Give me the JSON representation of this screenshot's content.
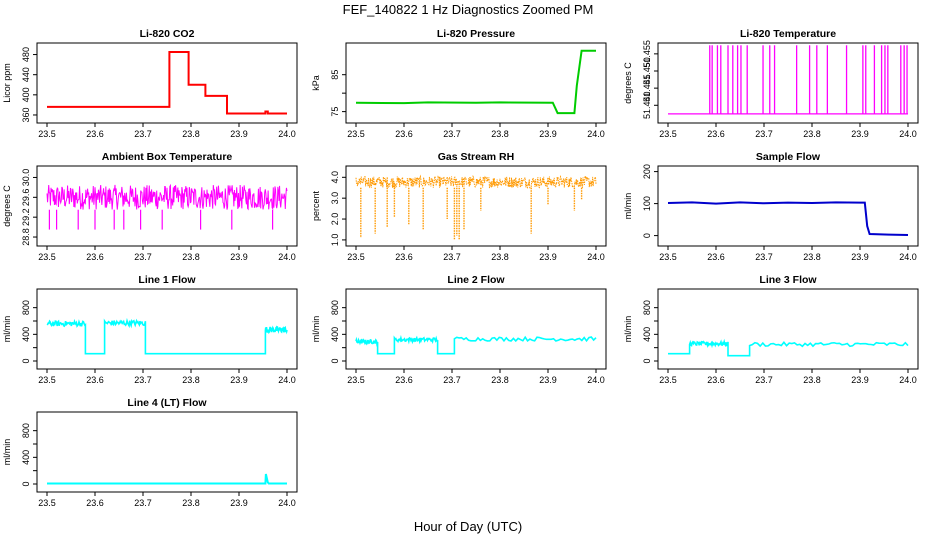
{
  "figure": {
    "title": "FEF_140822  1 Hz Diagnostics Zoomed PM",
    "xlabel": "Hour of Day (UTC)"
  },
  "chart_data": [
    {
      "type": "line",
      "title": "Li-820 CO2",
      "ylabel": "Licor ppm",
      "xlabel": "",
      "xlim": [
        23.5,
        24.0
      ],
      "ylim": [
        352,
        495
      ],
      "x_ticks": [
        "23.5",
        "23.6",
        "23.7",
        "23.8",
        "23.9",
        "24.0"
      ],
      "y_ticks": [
        360,
        400,
        440,
        480
      ],
      "y_tick_labels": [
        "360",
        "400",
        "440",
        "480"
      ],
      "color": "#ff0000",
      "series": [
        {
          "x": [
            23.5,
            23.755,
            23.755,
            23.795,
            23.795,
            23.83,
            23.83,
            23.875,
            23.875,
            23.955,
            23.955,
            23.96,
            23.96,
            24.0
          ],
          "y": [
            376,
            376,
            485,
            485,
            420,
            420,
            398,
            398,
            363,
            363,
            367,
            367,
            363,
            363
          ]
        }
      ]
    },
    {
      "type": "line",
      "title": "Li-820 Pressure",
      "ylabel": "kPa",
      "xlabel": "",
      "xlim": [
        23.5,
        24.0
      ],
      "ylim": [
        73,
        92.5
      ],
      "x_ticks": [
        "23.5",
        "23.6",
        "23.7",
        "23.8",
        "23.9",
        "24.0"
      ],
      "y_ticks": [
        75,
        80,
        85
      ],
      "y_tick_labels": [
        "75",
        "",
        "85"
      ],
      "color": "#00cc00",
      "series": [
        {
          "x": [
            23.5,
            23.6,
            23.65,
            23.75,
            23.8,
            23.91,
            23.92,
            23.955,
            23.96,
            23.97,
            24.0
          ],
          "y": [
            77.4,
            77.3,
            77.5,
            77.4,
            77.5,
            77.4,
            74.6,
            74.6,
            82,
            91.5,
            91.5
          ]
        }
      ]
    },
    {
      "type": "line",
      "title": "Li-820 Temperature",
      "ylabel": "degrees C",
      "xlabel": "",
      "xlim": [
        23.5,
        24.0
      ],
      "ylim": [
        51.436,
        51.457
      ],
      "x_ticks": [
        "23.5",
        "23.6",
        "23.7",
        "23.8",
        "23.9",
        "24.0"
      ],
      "y_ticks": [
        51.44,
        51.445,
        51.45,
        51.455
      ],
      "y_tick_labels": [
        "51.440",
        "51.445",
        "51.450",
        "51.455"
      ],
      "color": "#ff00ff",
      "baseline": 51.4375,
      "spikes_x": [
        23.587,
        23.592,
        23.603,
        23.61,
        23.625,
        23.635,
        23.645,
        23.652,
        23.665,
        23.698,
        23.712,
        23.722,
        23.768,
        23.795,
        23.81,
        23.832,
        23.872,
        23.906,
        23.912,
        23.93,
        23.945,
        23.952,
        23.958,
        23.985,
        23.992,
        23.998
      ],
      "spike_top": 51.4575
    },
    {
      "type": "line",
      "title": "Ambient Box Temperature",
      "ylabel": "degrees C",
      "xlabel": "",
      "xlim": [
        23.5,
        24.0
      ],
      "ylim": [
        28.7,
        30.15
      ],
      "x_ticks": [
        "23.5",
        "23.6",
        "23.7",
        "23.8",
        "23.9",
        "24.0"
      ],
      "y_ticks": [
        28.8,
        29.2,
        29.6,
        30.0
      ],
      "y_tick_labels": [
        "28.8",
        "29.2",
        "29.6",
        "30.0"
      ],
      "color": "#ff00ff",
      "noise_band": [
        29.35,
        29.85
      ],
      "dips_x": [
        23.505,
        23.52,
        23.565,
        23.6,
        23.64,
        23.66,
        23.695,
        23.74,
        23.82,
        23.885,
        23.97
      ],
      "dip_low": 28.95
    },
    {
      "type": "scatter",
      "title": "Gas Stream RH",
      "ylabel": "percent",
      "xlabel": "",
      "xlim": [
        23.5,
        24.0
      ],
      "ylim": [
        0.9,
        4.35
      ],
      "x_ticks": [
        "23.5",
        "23.6",
        "23.7",
        "23.8",
        "23.9",
        "24.0"
      ],
      "y_ticks": [
        1.0,
        2.0,
        3.0,
        4.0
      ],
      "y_tick_labels": [
        "1.0",
        "2.0",
        "3.0",
        "4.0"
      ],
      "color": "#ff9900",
      "noise_band": [
        3.5,
        4.05
      ],
      "dips": [
        [
          23.51,
          1.1
        ],
        [
          23.54,
          1.3
        ],
        [
          23.565,
          1.6
        ],
        [
          23.58,
          2.1
        ],
        [
          23.61,
          1.7
        ],
        [
          23.64,
          1.5
        ],
        [
          23.69,
          2.0
        ],
        [
          23.705,
          1.0
        ],
        [
          23.71,
          1.2
        ],
        [
          23.715,
          1.0
        ],
        [
          23.725,
          1.5
        ],
        [
          23.76,
          2.4
        ],
        [
          23.865,
          1.3
        ],
        [
          23.9,
          2.7
        ],
        [
          23.955,
          2.4
        ],
        [
          23.97,
          2.9
        ]
      ]
    },
    {
      "type": "line",
      "title": "Sample Flow",
      "ylabel": "ml/min",
      "xlabel": "",
      "xlim": [
        23.5,
        24.0
      ],
      "ylim": [
        -20,
        205
      ],
      "x_ticks": [
        "23.5",
        "23.6",
        "23.7",
        "23.8",
        "23.9",
        "24.0"
      ],
      "y_ticks": [
        0,
        100,
        200
      ],
      "y_tick_labels": [
        "0",
        "100",
        "200"
      ],
      "color": "#0000cc",
      "series": [
        {
          "x": [
            23.5,
            23.55,
            23.6,
            23.65,
            23.7,
            23.75,
            23.8,
            23.85,
            23.9,
            23.91,
            23.915,
            23.92,
            23.96,
            24.0
          ],
          "y": [
            102,
            104,
            100,
            104,
            101,
            103,
            102,
            104,
            103,
            103,
            30,
            5,
            3,
            2
          ]
        }
      ]
    },
    {
      "type": "line",
      "title": "Line 1 Flow",
      "ylabel": "ml/min",
      "xlabel": "",
      "xlim": [
        23.5,
        24.0
      ],
      "ylim": [
        -60,
        1020
      ],
      "x_ticks": [
        "23.5",
        "23.6",
        "23.7",
        "23.8",
        "23.9",
        "24.0"
      ],
      "y_ticks": [
        0,
        200,
        400,
        600,
        800
      ],
      "y_tick_labels": [
        "0",
        "",
        "400",
        "",
        "800"
      ],
      "color": "#00ffff",
      "segments": [
        [
          23.5,
          23.58,
          560,
          80
        ],
        [
          23.58,
          23.62,
          110,
          0
        ],
        [
          23.62,
          23.705,
          570,
          80
        ],
        [
          23.705,
          23.955,
          110,
          0
        ],
        [
          23.955,
          24.0,
          470,
          90
        ]
      ]
    },
    {
      "type": "line",
      "title": "Line 2 Flow",
      "ylabel": "ml/min",
      "xlabel": "",
      "xlim": [
        23.5,
        24.0
      ],
      "ylim": [
        -60,
        1020
      ],
      "x_ticks": [
        "23.5",
        "23.6",
        "23.7",
        "23.8",
        "23.9",
        "24.0"
      ],
      "y_ticks": [
        0,
        200,
        400,
        600,
        800
      ],
      "y_tick_labels": [
        "0",
        "",
        "400",
        "",
        "800"
      ],
      "color": "#00ffff",
      "segments": [
        [
          23.5,
          23.545,
          290,
          60
        ],
        [
          23.545,
          23.58,
          110,
          0
        ],
        [
          23.58,
          23.67,
          320,
          60
        ],
        [
          23.67,
          23.705,
          110,
          0
        ],
        [
          23.705,
          24.0,
          330,
          60
        ]
      ]
    },
    {
      "type": "line",
      "title": "Line 3 Flow",
      "ylabel": "ml/min",
      "xlabel": "",
      "xlim": [
        23.5,
        24.0
      ],
      "ylim": [
        -60,
        1020
      ],
      "x_ticks": [
        "23.5",
        "23.6",
        "23.7",
        "23.8",
        "23.9",
        "24.0"
      ],
      "y_ticks": [
        0,
        200,
        400,
        600,
        800
      ],
      "y_tick_labels": [
        "0",
        "",
        "400",
        "",
        "800"
      ],
      "color": "#00ffff",
      "segments": [
        [
          23.5,
          23.545,
          110,
          0
        ],
        [
          23.545,
          23.625,
          260,
          60
        ],
        [
          23.625,
          23.67,
          80,
          0
        ],
        [
          23.67,
          24.0,
          250,
          60
        ]
      ]
    },
    {
      "type": "line",
      "title": "Line 4 (LT) Flow",
      "ylabel": "ml/min",
      "xlabel": "",
      "xlim": [
        23.5,
        24.0
      ],
      "ylim": [
        -60,
        1020
      ],
      "x_ticks": [
        "23.5",
        "23.6",
        "23.7",
        "23.8",
        "23.9",
        "24.0"
      ],
      "y_ticks": [
        0,
        200,
        400,
        600,
        800
      ],
      "y_tick_labels": [
        "0",
        "",
        "400",
        "",
        "800"
      ],
      "color": "#00ffff",
      "series": [
        {
          "x": [
            23.5,
            23.955,
            23.956,
            23.96,
            23.962,
            24.0
          ],
          "y": [
            8,
            8,
            150,
            25,
            8,
            8
          ]
        }
      ]
    }
  ]
}
